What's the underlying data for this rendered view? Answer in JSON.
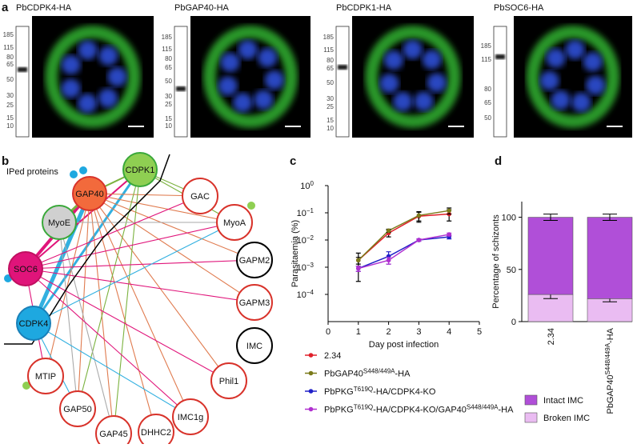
{
  "panel_a": {
    "label": "a",
    "panels": [
      {
        "title": "PbCDPK4-HA",
        "markers": [
          185,
          115,
          80,
          65,
          50,
          30,
          25,
          15,
          10
        ]
      },
      {
        "title": "PbGAP40-HA",
        "markers": [
          185,
          115,
          80,
          65,
          50,
          30,
          25,
          15,
          10
        ]
      },
      {
        "title": "PbCDPK1-HA",
        "markers": [
          185,
          115,
          80,
          65,
          50,
          30,
          25,
          15,
          10
        ]
      },
      {
        "title": "PbSOC6-HA",
        "markers": [
          185,
          115,
          80,
          65,
          50
        ]
      }
    ]
  },
  "panel_b": {
    "label": "b",
    "legend_title": "IPed proteins",
    "nodes": [
      {
        "label": "GAP40"
      },
      {
        "label": "CDPK1"
      },
      {
        "label": "MyoE"
      },
      {
        "label": "SOC6"
      },
      {
        "label": "CDPK4"
      },
      {
        "label": "GAC"
      },
      {
        "label": "MyoA"
      },
      {
        "label": "GAPM2"
      },
      {
        "label": "GAPM3"
      },
      {
        "label": "IMC"
      },
      {
        "label": "Phil1"
      },
      {
        "label": "IMC1g"
      },
      {
        "label": "DHHC2"
      },
      {
        "label": "GAP45"
      },
      {
        "label": "GAP50"
      },
      {
        "label": "MTIP"
      }
    ]
  },
  "chart_data": [
    {
      "type": "line",
      "panel_label": "c",
      "x_label": "Day post infection",
      "y_label": "Parasitaemia (%)",
      "log_y": true,
      "x": [
        1,
        2,
        3,
        4
      ],
      "xlim": [
        0,
        5
      ],
      "xticks": [
        0,
        1,
        2,
        3,
        4,
        5
      ],
      "ylim": [
        1e-05,
        1
      ],
      "yticks": [
        {
          "value": 0.0001,
          "label": "10",
          "exponent": "−4"
        },
        {
          "value": 0.001,
          "label": "10",
          "exponent": "−3"
        },
        {
          "value": 0.01,
          "label": "10",
          "exponent": "−2"
        },
        {
          "value": 0.1,
          "label": "10",
          "exponent": "−1"
        },
        {
          "value": 1,
          "label": "10",
          "exponent": "0"
        }
      ],
      "series": [
        {
          "name": [
            "2.34"
          ],
          "color": "#e0202a",
          "values": [
            0.0018,
            0.018,
            0.075,
            0.09
          ],
          "errors": [
            0.0005,
            0.005,
            0.03,
            0.04
          ]
        },
        {
          "name": [
            "PbGAP40",
            "S448/449A",
            "-HA"
          ],
          "color": "#7a7a1a",
          "values": [
            0.0018,
            0.022,
            0.08,
            0.12
          ],
          "errors": [
            0.0015,
            0.003,
            0.03,
            0.03
          ]
        },
        {
          "name": [
            "PbPKG",
            "T619Q",
            "-HA/CDPK4-KO"
          ],
          "color": "#2020c8",
          "values": [
            0.0009,
            0.0025,
            0.01,
            0.013
          ],
          "errors": [
            0.0002,
            0.0012,
            0.001,
            0.002
          ]
        },
        {
          "name": [
            "PbPKG",
            "T619Q",
            "-HA/CDPK4-KO/GAP40",
            "S448/449A",
            "-HA"
          ],
          "color": "#b030d0",
          "values": [
            0.0009,
            0.0018,
            0.01,
            0.016
          ],
          "errors": [
            0.0002,
            0.0005,
            0.001,
            0.002
          ]
        }
      ]
    },
    {
      "type": "stacked_bar",
      "panel_label": "d",
      "y_label": "Percentage of schizonts",
      "categories": [
        [
          "2.34"
        ],
        [
          "PbGAP40",
          "S448/449A",
          "-HA"
        ]
      ],
      "ylim": [
        0,
        115
      ],
      "yticks": [
        0,
        50,
        100
      ],
      "series": [
        {
          "name": "Broken IMC",
          "color": "#eabcf2",
          "values": [
            26,
            22
          ],
          "errors": [
            4,
            3
          ]
        },
        {
          "name": "Intact IMC",
          "color": "#b04fd8",
          "values": [
            74,
            78
          ],
          "errors": [
            3,
            3
          ]
        }
      ]
    }
  ]
}
